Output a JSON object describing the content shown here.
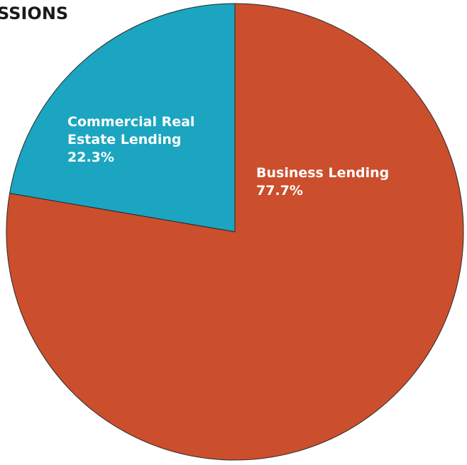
{
  "chart_data": {
    "type": "pie",
    "title": "SSIONS",
    "slices": [
      {
        "label": "Business Lending",
        "value": 77.7,
        "value_label": "77.7%",
        "color": "#cb4e2d"
      },
      {
        "label": "Commercial Real Estate Lending",
        "label_lines": [
          "Commercial Real",
          "Estate Lending"
        ],
        "value": 22.3,
        "value_label": "22.3%",
        "color": "#1ba5c1"
      }
    ],
    "start_angle": "top (12 o'clock)",
    "direction": "clockwise",
    "legend": "none"
  }
}
